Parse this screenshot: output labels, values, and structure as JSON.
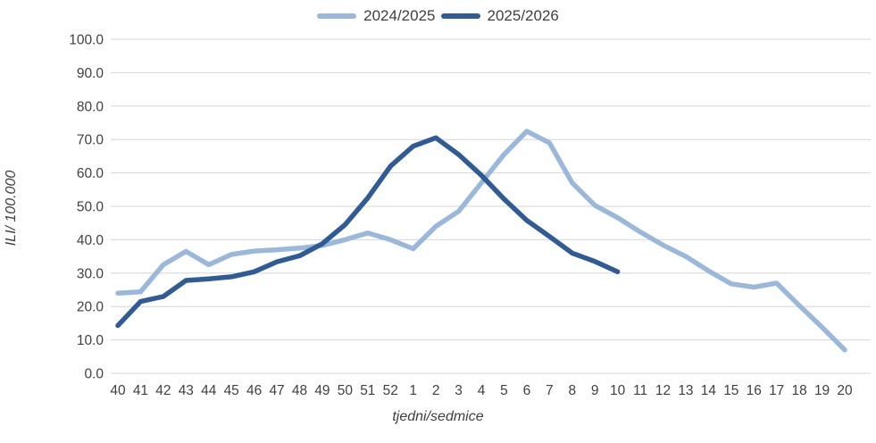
{
  "chart_data": {
    "type": "line",
    "title": "",
    "xlabel": "tjedni/sedmice",
    "ylabel": "ILI/ 100.000",
    "ylim": [
      0,
      100
    ],
    "y_tick_step": 10,
    "y_tick_labels": [
      "0.0",
      "10.0",
      "20.0",
      "30.0",
      "40.0",
      "50.0",
      "60.0",
      "70.0",
      "80.0",
      "90.0",
      "100.0"
    ],
    "grid": "horizontal",
    "legend_position": "top-center",
    "categories": [
      "40",
      "41",
      "42",
      "43",
      "44",
      "45",
      "46",
      "47",
      "48",
      "49",
      "50",
      "51",
      "52",
      "1",
      "2",
      "3",
      "4",
      "5",
      "6",
      "7",
      "8",
      "9",
      "10",
      "11",
      "12",
      "13",
      "14",
      "15",
      "16",
      "17",
      "18",
      "19",
      "20"
    ],
    "series": [
      {
        "name": "2024/2025",
        "color": "#9AB7DC",
        "values": [
          24.0,
          24.4,
          32.5,
          36.5,
          32.5,
          35.6,
          36.6,
          37.0,
          37.5,
          38.3,
          40.0,
          42.0,
          40.0,
          37.3,
          44.0,
          48.5,
          57.0,
          65.5,
          72.5,
          69.0,
          57.0,
          50.3,
          46.6,
          42.3,
          38.4,
          35.0,
          30.7,
          26.8,
          25.8,
          27.0,
          20.3,
          13.8,
          7.0
        ]
      },
      {
        "name": "2025/2026",
        "color": "#2F5B96",
        "values": [
          14.3,
          21.5,
          23.0,
          27.8,
          28.3,
          28.9,
          30.4,
          33.4,
          35.2,
          38.8,
          44.5,
          52.5,
          62.0,
          68.0,
          70.5,
          65.5,
          59.3,
          52.2,
          45.8,
          41.0,
          36.0,
          33.5,
          30.4,
          null,
          null,
          null,
          null,
          null,
          null,
          null,
          null,
          null,
          null
        ]
      }
    ],
    "colors": {
      "gridline": "#D6D6D6",
      "tick_text": "#404040",
      "background": "#FFFFFF"
    }
  }
}
